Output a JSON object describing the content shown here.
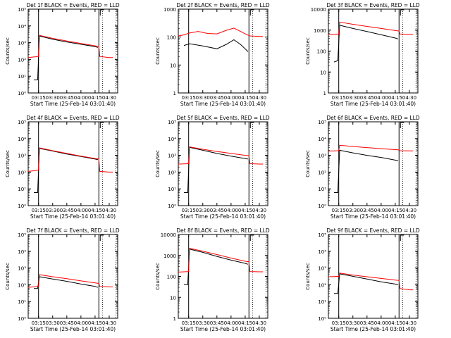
{
  "figure": {
    "background": "#ffffff",
    "events_color": "#000000",
    "lld_color": "#ff0000"
  },
  "chart_data": [
    {
      "type": "line",
      "title": "Det 1f BLACK = Events, RED = LLD",
      "xlabel": "Start Time (25-Feb-14 03:01:40)",
      "ylabel": "Counts/sec",
      "yscale": "log",
      "ylim": [
        1,
        100000
      ],
      "yticks": [
        1,
        10,
        100,
        1000,
        10000,
        100000
      ],
      "ytick_labels": [
        "10⁰",
        "10¹",
        "10²",
        "10³",
        "10⁴",
        "10⁵"
      ],
      "xlim": [
        "03:04",
        "04:39"
      ],
      "xticks": [
        "03:15",
        "03:30",
        "03:45",
        "04:00",
        "04:15",
        "04:30"
      ],
      "vlines": [
        "03:15",
        "04:19"
      ],
      "dotted_vlines": [
        "04:23",
        "04:37"
      ],
      "series": [
        {
          "name": "Events",
          "color": "#000000",
          "x": [
            "03:10",
            "03:14",
            "03:16",
            "03:30",
            "03:45",
            "04:00",
            "04:15",
            "04:18"
          ],
          "y": [
            6,
            6,
            2500,
            1600,
            1100,
            800,
            580,
            520
          ]
        },
        {
          "name": "LLD",
          "color": "#ff0000",
          "x": [
            "03:04",
            "03:10",
            "03:15",
            "03:16",
            "03:30",
            "03:45",
            "04:00",
            "04:15",
            "04:19",
            "04:20",
            "04:30",
            "04:34"
          ],
          "y": [
            130,
            140,
            150,
            2700,
            1800,
            1250,
            900,
            650,
            600,
            150,
            130,
            130
          ]
        }
      ]
    },
    {
      "type": "line",
      "title": "Det 2f BLACK = Events, RED = LLD",
      "xlabel": "Start Time (25-Feb-14 03:01:40)",
      "ylabel": "Counts/sec",
      "yscale": "log",
      "ylim": [
        1,
        1000
      ],
      "yticks": [
        1,
        10,
        100,
        1000
      ],
      "ytick_labels": [
        "1",
        "10",
        "100",
        "1000"
      ],
      "xlim": [
        "03:04",
        "04:39"
      ],
      "xticks": [
        "03:15",
        "03:30",
        "03:45",
        "04:00",
        "04:15",
        "04:30"
      ],
      "vlines": [
        "03:15",
        "04:19"
      ],
      "dotted_vlines": [
        "04:23",
        "04:37"
      ],
      "series": [
        {
          "name": "Events",
          "color": "#000000",
          "x": [
            "03:10",
            "03:14",
            "03:16",
            "03:30",
            "03:45",
            "03:55",
            "04:03",
            "04:10",
            "04:15",
            "04:18"
          ],
          "y": [
            50,
            55,
            58,
            48,
            38,
            55,
            80,
            55,
            38,
            30
          ]
        },
        {
          "name": "LLD",
          "color": "#ff0000",
          "x": [
            "03:04",
            "03:10",
            "03:16",
            "03:25",
            "03:35",
            "03:45",
            "03:55",
            "04:03",
            "04:10",
            "04:15",
            "04:20",
            "04:30",
            "04:34"
          ],
          "y": [
            110,
            120,
            140,
            160,
            135,
            130,
            175,
            210,
            160,
            130,
            110,
            105,
            105
          ]
        }
      ]
    },
    {
      "type": "line",
      "title": "Det 3f BLACK = Events, RED = LLD",
      "xlabel": "Start Time (25-Feb-14 03:01:40)",
      "ylabel": "Counts/sec",
      "yscale": "log",
      "ylim": [
        1,
        10000
      ],
      "yticks": [
        1,
        10,
        100,
        1000,
        10000
      ],
      "ytick_labels": [
        "1",
        "10",
        "100",
        "1000",
        "10000"
      ],
      "xlim": [
        "03:04",
        "04:39"
      ],
      "xticks": [
        "03:15",
        "03:30",
        "03:45",
        "04:00",
        "04:15",
        "04:30"
      ],
      "vlines": [
        "03:15",
        "04:19"
      ],
      "dotted_vlines": [
        "04:23",
        "04:37"
      ],
      "series": [
        {
          "name": "Events",
          "color": "#000000",
          "x": [
            "03:10",
            "03:14",
            "03:16",
            "03:30",
            "03:45",
            "04:00",
            "04:15",
            "04:18"
          ],
          "y": [
            30,
            35,
            1700,
            1200,
            850,
            600,
            420,
            380
          ]
        },
        {
          "name": "LLD",
          "color": "#ff0000",
          "x": [
            "03:04",
            "03:10",
            "03:15",
            "03:16",
            "03:30",
            "03:45",
            "04:00",
            "04:15",
            "04:19",
            "04:20",
            "04:30",
            "04:34"
          ],
          "y": [
            600,
            620,
            650,
            2400,
            1900,
            1500,
            1200,
            950,
            900,
            650,
            630,
            630
          ]
        }
      ]
    },
    {
      "type": "line",
      "title": "Det 4f BLACK = Events, RED = LLD",
      "xlabel": "Start Time (25-Feb-14 03:01:40)",
      "ylabel": "Counts/sec",
      "yscale": "log",
      "ylim": [
        1,
        100000
      ],
      "yticks": [
        1,
        10,
        100,
        1000,
        10000,
        100000
      ],
      "ytick_labels": [
        "10⁰",
        "10¹",
        "10²",
        "10³",
        "10⁴",
        "10⁵"
      ],
      "xlim": [
        "03:04",
        "04:39"
      ],
      "xticks": [
        "03:15",
        "03:30",
        "03:45",
        "04:00",
        "04:15",
        "04:30"
      ],
      "vlines": [
        "03:15",
        "04:19"
      ],
      "dotted_vlines": [
        "04:23",
        "04:37"
      ],
      "series": [
        {
          "name": "Events",
          "color": "#000000",
          "x": [
            "03:10",
            "03:14",
            "03:16",
            "03:30",
            "03:45",
            "04:00",
            "04:15",
            "04:18"
          ],
          "y": [
            6,
            6,
            2600,
            1800,
            1200,
            850,
            600,
            550
          ]
        },
        {
          "name": "LLD",
          "color": "#ff0000",
          "x": [
            "03:04",
            "03:10",
            "03:15",
            "03:16",
            "03:30",
            "03:45",
            "04:00",
            "04:15",
            "04:19",
            "04:20",
            "04:30",
            "04:34"
          ],
          "y": [
            110,
            120,
            130,
            2800,
            1900,
            1300,
            900,
            650,
            600,
            110,
            100,
            100
          ]
        }
      ]
    },
    {
      "type": "line",
      "title": "Det 5f BLACK = Events, RED = LLD",
      "xlabel": "Start Time (25-Feb-14 03:01:40)",
      "ylabel": "Counts/sec",
      "yscale": "log",
      "ylim": [
        1,
        100000
      ],
      "yticks": [
        1,
        10,
        100,
        1000,
        10000,
        100000
      ],
      "ytick_labels": [
        "10⁰",
        "10¹",
        "10²",
        "10³",
        "10⁴",
        "10⁵"
      ],
      "xlim": [
        "03:04",
        "04:39"
      ],
      "xticks": [
        "03:15",
        "03:30",
        "03:45",
        "04:00",
        "04:15",
        "04:30"
      ],
      "vlines": [
        "03:15",
        "04:19"
      ],
      "dotted_vlines": [
        "04:23",
        "04:37"
      ],
      "series": [
        {
          "name": "Events",
          "color": "#000000",
          "x": [
            "03:10",
            "03:14",
            "03:16",
            "03:30",
            "03:45",
            "04:00",
            "04:15",
            "04:18"
          ],
          "y": [
            6,
            6,
            3000,
            2000,
            1300,
            900,
            650,
            600
          ]
        },
        {
          "name": "LLD",
          "color": "#ff0000",
          "x": [
            "03:04",
            "03:10",
            "03:15",
            "03:16",
            "03:30",
            "03:45",
            "04:00",
            "04:15",
            "04:19",
            "04:20",
            "04:30",
            "04:34"
          ],
          "y": [
            300,
            310,
            320,
            3200,
            2300,
            1700,
            1300,
            1000,
            950,
            320,
            300,
            300
          ]
        }
      ]
    },
    {
      "type": "line",
      "title": "Det 6f BLACK = Events, RED = LLD",
      "xlabel": "Start Time (25-Feb-14 03:01:40)",
      "ylabel": "Counts/sec",
      "yscale": "log",
      "ylim": [
        1,
        100000
      ],
      "yticks": [
        1,
        10,
        100,
        1000,
        10000,
        100000
      ],
      "ytick_labels": [
        "10⁰",
        "10¹",
        "10²",
        "10³",
        "10⁴",
        "10⁵"
      ],
      "xlim": [
        "03:04",
        "04:39"
      ],
      "xticks": [
        "03:15",
        "03:30",
        "03:45",
        "04:00",
        "04:15",
        "04:30"
      ],
      "vlines": [
        "03:15",
        "04:19"
      ],
      "dotted_vlines": [
        "04:23",
        "04:37"
      ],
      "series": [
        {
          "name": "Events",
          "color": "#000000",
          "x": [
            "03:10",
            "03:14",
            "03:16",
            "03:30",
            "03:45",
            "04:00",
            "04:15",
            "04:18"
          ],
          "y": [
            6,
            6,
            2000,
            1400,
            1000,
            750,
            520,
            480
          ]
        },
        {
          "name": "LLD",
          "color": "#ff0000",
          "x": [
            "03:04",
            "03:10",
            "03:15",
            "03:16",
            "03:30",
            "03:45",
            "04:00",
            "04:15",
            "04:19",
            "04:20",
            "04:30",
            "04:34"
          ],
          "y": [
            1800,
            1850,
            1900,
            4000,
            3400,
            2900,
            2500,
            2200,
            2100,
            1900,
            1850,
            1850
          ]
        }
      ]
    },
    {
      "type": "line",
      "title": "Det 7f BLACK = Events, RED = LLD",
      "xlabel": "Start Time (25-Feb-14 03:01:40)",
      "ylabel": "Counts/sec",
      "yscale": "log",
      "ylim": [
        1,
        100000
      ],
      "yticks": [
        1,
        10,
        100,
        1000,
        10000,
        100000
      ],
      "ytick_labels": [
        "10⁰",
        "10¹",
        "10²",
        "10³",
        "10⁴",
        "10⁵"
      ],
      "xlim": [
        "03:04",
        "04:39"
      ],
      "xticks": [
        "03:15",
        "03:30",
        "03:45",
        "04:00",
        "04:15",
        "04:30"
      ],
      "vlines": [
        "03:15",
        "04:19"
      ],
      "dotted_vlines": [
        "04:23",
        "04:37"
      ],
      "series": [
        {
          "name": "Events",
          "color": "#000000",
          "x": [
            "03:10",
            "03:14",
            "03:16",
            "03:30",
            "03:45",
            "04:00",
            "04:15",
            "04:18"
          ],
          "y": [
            60,
            60,
            300,
            220,
            160,
            110,
            80,
            70
          ]
        },
        {
          "name": "LLD",
          "color": "#ff0000",
          "x": [
            "03:04",
            "03:10",
            "03:15",
            "03:16",
            "03:30",
            "03:45",
            "04:00",
            "04:15",
            "04:19",
            "04:20",
            "04:30",
            "04:34"
          ],
          "y": [
            70,
            75,
            80,
            400,
            300,
            230,
            170,
            130,
            120,
            80,
            75,
            75
          ]
        }
      ]
    },
    {
      "type": "line",
      "title": "Det 8f BLACK = Events, RED = LLD",
      "xlabel": "Start Time (25-Feb-14 03:01:40)",
      "ylabel": "Counts/sec",
      "yscale": "log",
      "ylim": [
        1,
        10000
      ],
      "yticks": [
        1,
        10,
        100,
        1000,
        10000
      ],
      "ytick_labels": [
        "1",
        "10",
        "100",
        "1000",
        "10000"
      ],
      "xlim": [
        "03:04",
        "04:39"
      ],
      "xticks": [
        "03:15",
        "03:30",
        "03:45",
        "04:00",
        "04:15",
        "04:30"
      ],
      "vlines": [
        "03:15",
        "04:19"
      ],
      "dotted_vlines": [
        "04:23",
        "04:37"
      ],
      "series": [
        {
          "name": "Events",
          "color": "#000000",
          "x": [
            "03:10",
            "03:14",
            "03:16",
            "03:30",
            "03:45",
            "04:00",
            "04:15",
            "04:18"
          ],
          "y": [
            40,
            40,
            2000,
            1400,
            900,
            600,
            420,
            380
          ]
        },
        {
          "name": "LLD",
          "color": "#ff0000",
          "x": [
            "03:04",
            "03:10",
            "03:15",
            "03:16",
            "03:30",
            "03:45",
            "04:00",
            "04:15",
            "04:19",
            "04:20",
            "04:30",
            "04:34"
          ],
          "y": [
            160,
            165,
            170,
            2200,
            1600,
            1100,
            750,
            530,
            500,
            170,
            165,
            165
          ]
        }
      ]
    },
    {
      "type": "line",
      "title": "Det 9f BLACK = Events, RED = LLD",
      "xlabel": "Start Time (25-Feb-14 03:01:40)",
      "ylabel": "Counts/sec",
      "yscale": "log",
      "ylim": [
        1,
        100000
      ],
      "yticks": [
        1,
        10,
        100,
        1000,
        10000,
        100000
      ],
      "ytick_labels": [
        "10⁰",
        "10¹",
        "10²",
        "10³",
        "10⁴",
        "10⁵"
      ],
      "xlim": [
        "03:04",
        "04:39"
      ],
      "xticks": [
        "03:15",
        "03:30",
        "03:45",
        "04:00",
        "04:15",
        "04:30"
      ],
      "vlines": [
        "03:15",
        "04:19"
      ],
      "dotted_vlines": [
        "04:23",
        "04:37"
      ],
      "series": [
        {
          "name": "Events",
          "color": "#000000",
          "x": [
            "03:10",
            "03:14",
            "03:16",
            "03:30",
            "03:45",
            "04:00",
            "04:15",
            "04:18"
          ],
          "y": [
            30,
            30,
            450,
            320,
            220,
            150,
            110,
            100
          ]
        },
        {
          "name": "LLD",
          "color": "#ff0000",
          "x": [
            "03:04",
            "03:10",
            "03:15",
            "03:16",
            "03:30",
            "03:45",
            "04:00",
            "04:15",
            "04:19",
            "04:20",
            "04:30",
            "04:34"
          ],
          "y": [
            300,
            310,
            320,
            500,
            380,
            300,
            240,
            190,
            180,
            60,
            50,
            50
          ]
        }
      ]
    }
  ]
}
